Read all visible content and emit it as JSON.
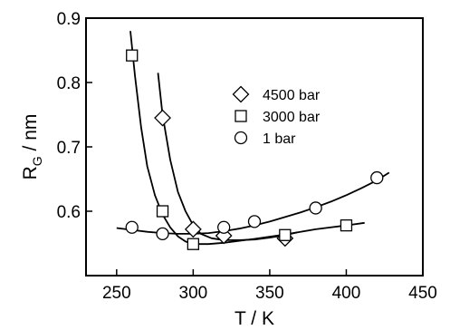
{
  "chart_data": {
    "type": "scatter",
    "xlabel": "T / K",
    "ylabel": "R",
    "ylabel_sub": "G",
    "ylabel_unit": " / nm",
    "xlim": [
      230,
      450
    ],
    "ylim": [
      0.5,
      0.9
    ],
    "xticks": [
      250,
      300,
      350,
      400,
      450
    ],
    "yticks": [
      0.6,
      0.7,
      0.8,
      0.9
    ],
    "ytick_labels": [
      "0.6",
      "0.7",
      "0.8",
      "0.9"
    ],
    "grid": false,
    "legend_position": "center-right",
    "series": [
      {
        "name": "4500 bar",
        "marker": "diamond",
        "points": [
          [
            280,
            0.745
          ],
          [
            300,
            0.572
          ],
          [
            320,
            0.562
          ],
          [
            360,
            0.558
          ]
        ],
        "curve": [
          [
            277,
            0.815
          ],
          [
            280,
            0.75
          ],
          [
            285,
            0.68
          ],
          [
            290,
            0.63
          ],
          [
            295,
            0.6
          ],
          [
            300,
            0.578
          ],
          [
            305,
            0.565
          ],
          [
            312,
            0.558
          ],
          [
            320,
            0.555
          ],
          [
            330,
            0.555
          ],
          [
            340,
            0.556
          ],
          [
            350,
            0.559
          ],
          [
            360,
            0.563
          ],
          [
            368,
            0.567
          ]
        ]
      },
      {
        "name": "3000 bar",
        "marker": "square",
        "points": [
          [
            260,
            0.842
          ],
          [
            280,
            0.6
          ],
          [
            300,
            0.549
          ],
          [
            360,
            0.563
          ],
          [
            400,
            0.578
          ]
        ],
        "curve": [
          [
            259,
            0.88
          ],
          [
            262,
            0.81
          ],
          [
            266,
            0.73
          ],
          [
            270,
            0.67
          ],
          [
            275,
            0.625
          ],
          [
            280,
            0.595
          ],
          [
            285,
            0.575
          ],
          [
            290,
            0.561
          ],
          [
            295,
            0.553
          ],
          [
            300,
            0.549
          ],
          [
            310,
            0.549
          ],
          [
            320,
            0.551
          ],
          [
            340,
            0.557
          ],
          [
            360,
            0.564
          ],
          [
            380,
            0.572
          ],
          [
            400,
            0.578
          ],
          [
            412,
            0.582
          ]
        ]
      },
      {
        "name": "1 bar",
        "marker": "circle",
        "points": [
          [
            260,
            0.575
          ],
          [
            280,
            0.565
          ],
          [
            320,
            0.575
          ],
          [
            340,
            0.584
          ],
          [
            380,
            0.605
          ],
          [
            420,
            0.652
          ]
        ],
        "curve": [
          [
            250,
            0.574
          ],
          [
            260,
            0.571
          ],
          [
            270,
            0.568
          ],
          [
            280,
            0.566
          ],
          [
            290,
            0.565
          ],
          [
            300,
            0.565
          ],
          [
            310,
            0.566
          ],
          [
            320,
            0.569
          ],
          [
            330,
            0.573
          ],
          [
            340,
            0.578
          ],
          [
            350,
            0.584
          ],
          [
            360,
            0.591
          ],
          [
            370,
            0.598
          ],
          [
            380,
            0.606
          ],
          [
            390,
            0.615
          ],
          [
            400,
            0.625
          ],
          [
            410,
            0.636
          ],
          [
            420,
            0.648
          ],
          [
            428,
            0.66
          ]
        ]
      }
    ]
  }
}
